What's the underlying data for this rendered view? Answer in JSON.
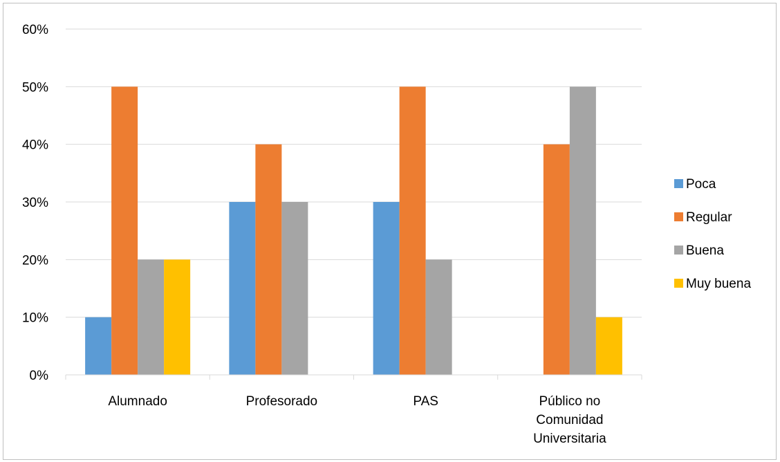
{
  "chart_data": {
    "type": "bar",
    "title": "",
    "xlabel": "",
    "ylabel": "",
    "ylim": [
      0,
      0.6
    ],
    "y_ticks": [
      "0%",
      "10%",
      "20%",
      "30%",
      "40%",
      "50%",
      "60%"
    ],
    "y_tick_values": [
      0,
      0.1,
      0.2,
      0.3,
      0.4,
      0.5,
      0.6
    ],
    "grid": true,
    "legend_position": "right",
    "categories": [
      [
        "Alumnado"
      ],
      [
        "Profesorado"
      ],
      [
        "PAS"
      ],
      [
        "Público no",
        "Comunidad",
        "Universitaria"
      ]
    ],
    "series": [
      {
        "name": "Poca",
        "color": "#5b9bd5",
        "values": [
          0.1,
          0.3,
          0.3,
          0.0
        ]
      },
      {
        "name": "Regular",
        "color": "#ed7d31",
        "values": [
          0.5,
          0.4,
          0.5,
          0.4
        ]
      },
      {
        "name": "Buena",
        "color": "#a5a5a5",
        "values": [
          0.2,
          0.3,
          0.2,
          0.5
        ]
      },
      {
        "name": "Muy buena",
        "color": "#ffc000",
        "values": [
          0.2,
          0.0,
          0.0,
          0.1
        ]
      }
    ]
  }
}
